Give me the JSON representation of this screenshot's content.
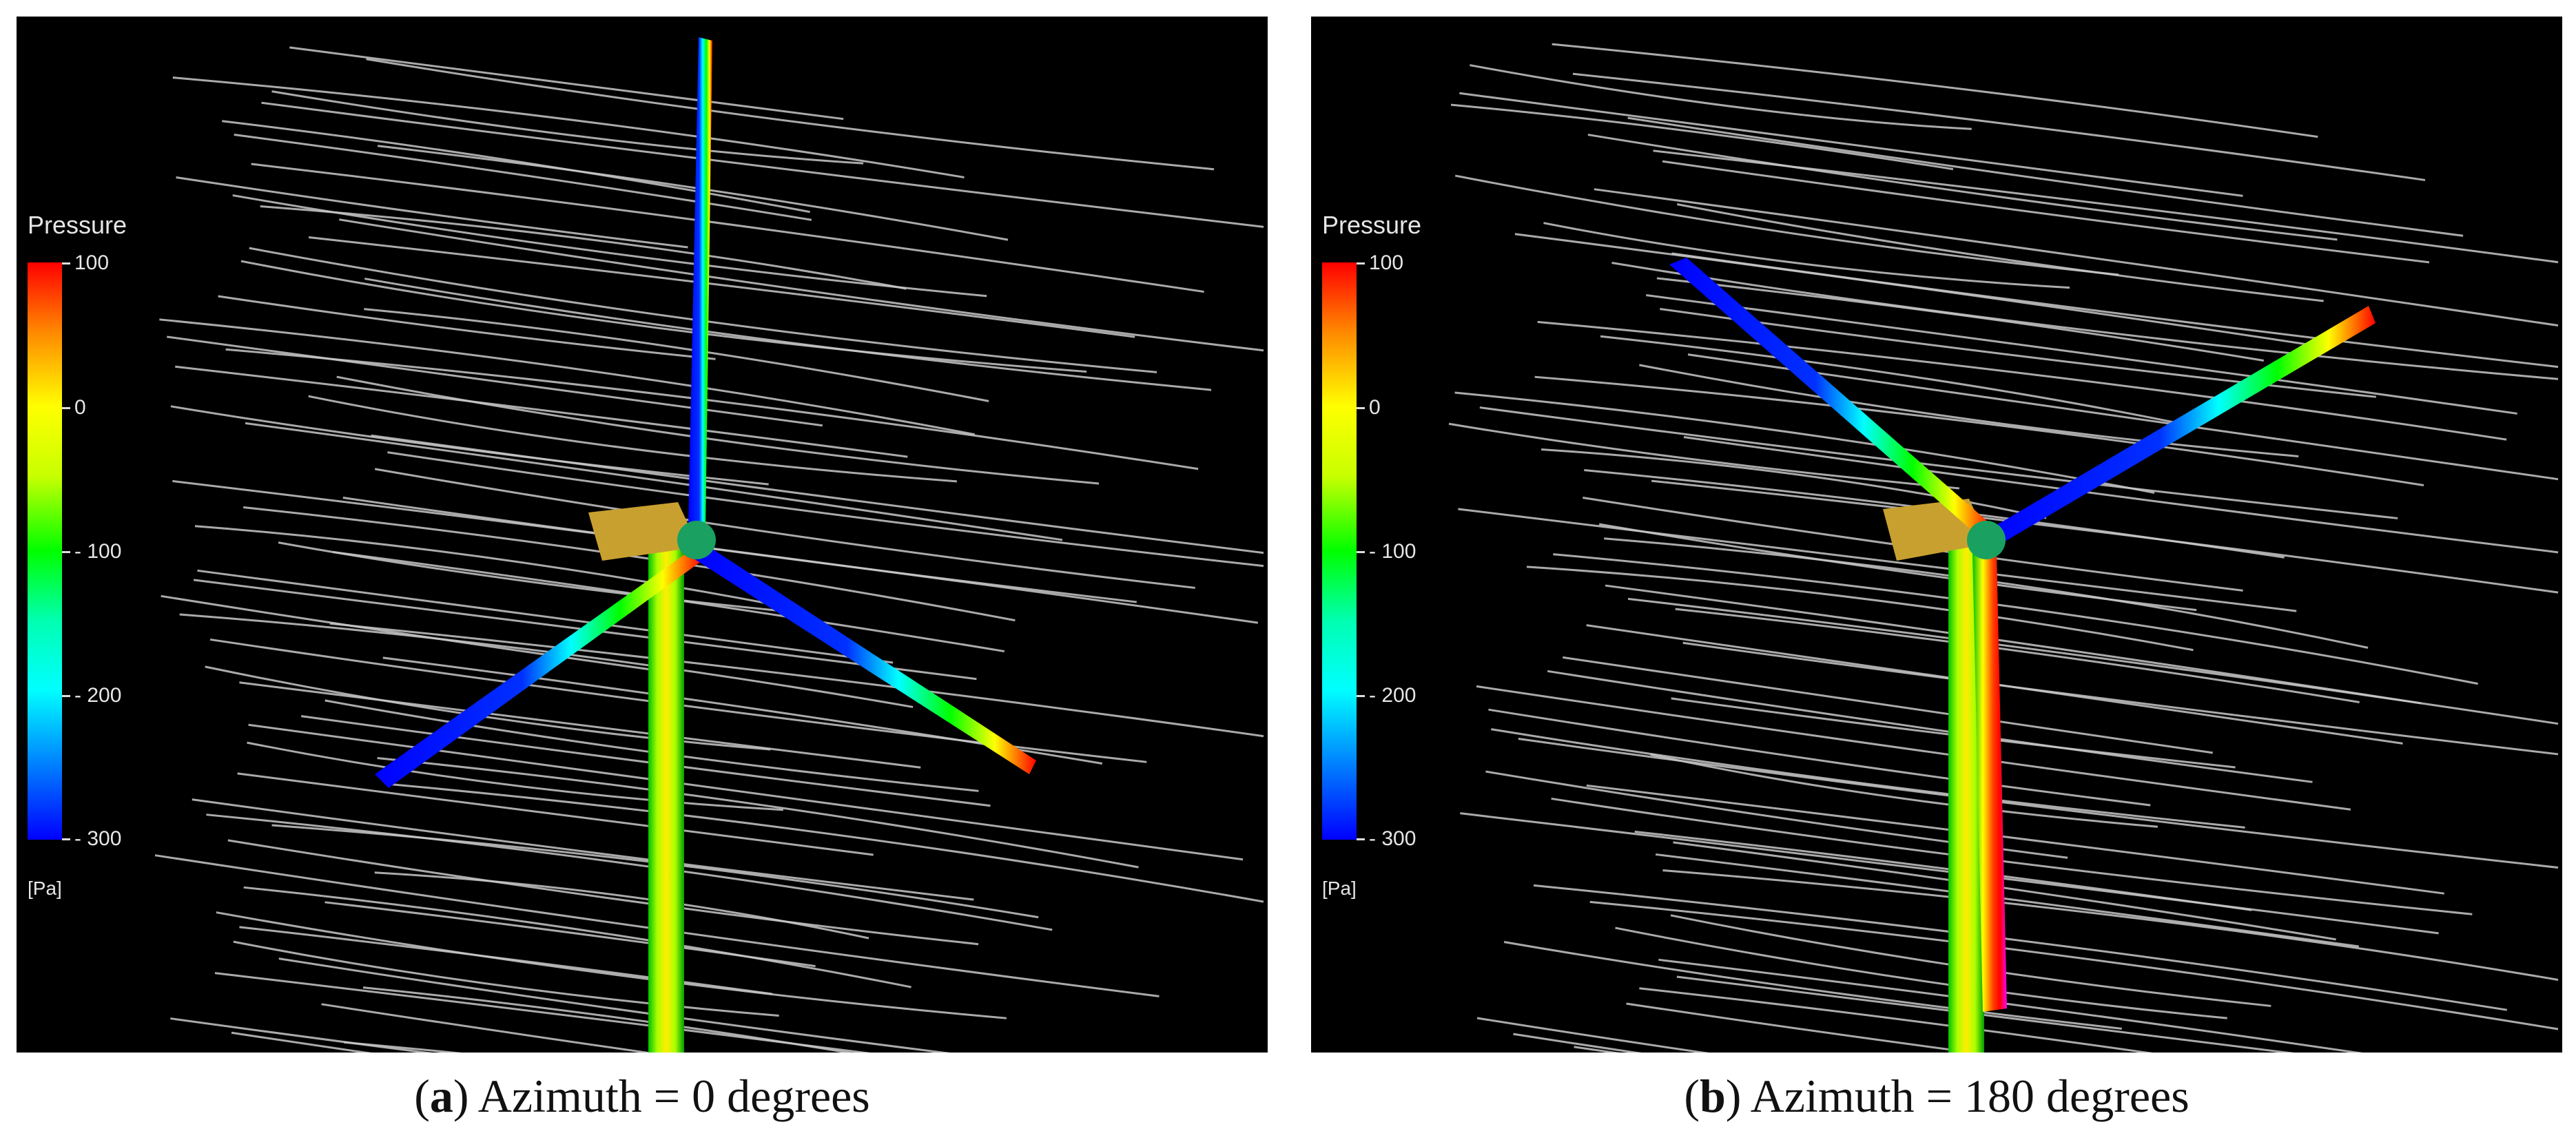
{
  "panels": [
    {
      "id": "a",
      "legend": {
        "title": "Pressure",
        "unit": "[Pa]",
        "ticks": [
          "100",
          "0",
          "- 100",
          "- 200",
          "- 300"
        ]
      },
      "caption": {
        "letter": "a",
        "text": "Azimuth = 0 degrees"
      },
      "azimuth_deg": 0
    },
    {
      "id": "b",
      "legend": {
        "title": "Pressure",
        "unit": "[Pa]",
        "ticks": [
          "100",
          "0",
          "- 100",
          "- 200",
          "- 300"
        ]
      },
      "caption": {
        "letter": "b",
        "text": "Azimuth = 180 degrees"
      },
      "azimuth_deg": 180
    }
  ],
  "colors": {
    "background": "#000000",
    "streamline": "#c8c8c8",
    "pressure_high": "#ff0000",
    "pressure_low": "#0000ff",
    "nacelle": "#c8a030"
  }
}
